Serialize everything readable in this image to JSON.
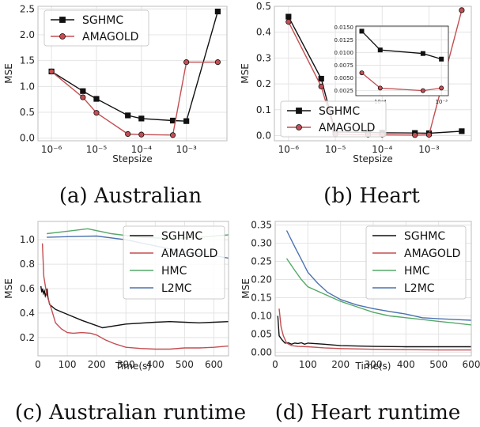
{
  "figure": {
    "captions": [
      "(a) Australian",
      "(b) Heart",
      "(c) Australian runtime",
      "(d) Heart runtime"
    ]
  },
  "chart_data": [
    {
      "type": "line",
      "panel": "a",
      "xlabel": "Stepsize",
      "ylabel": "MSE",
      "xscale": "log",
      "xlim": [
        5e-07,
        0.008
      ],
      "ylim": [
        -0.05,
        2.55
      ],
      "xticks": [
        1e-06,
        1e-05,
        0.0001,
        0.001
      ],
      "xticklabels": [
        "10⁻⁶",
        "10⁻⁵",
        "10⁻⁴",
        "10⁻³"
      ],
      "yticks": [
        0.0,
        0.5,
        1.0,
        1.5,
        2.0,
        2.5
      ],
      "yticklabels": [
        "0.0",
        "0.5",
        "1.0",
        "1.5",
        "2.0",
        "2.5"
      ],
      "grid": true,
      "legend": "top-left",
      "series": [
        {
          "name": "SGHMC",
          "color": "#111111",
          "marker": "square",
          "x": [
            1e-06,
            5e-06,
            1e-05,
            5e-05,
            0.0001,
            0.0005,
            0.001,
            0.005
          ],
          "y": [
            1.29,
            0.91,
            0.76,
            0.44,
            0.38,
            0.34,
            0.33,
            2.45
          ]
        },
        {
          "name": "AMAGOLD",
          "color": "#c44e52",
          "marker": "circle",
          "x": [
            1e-06,
            5e-06,
            1e-05,
            5e-05,
            0.0001,
            0.0005,
            0.001,
            0.005
          ],
          "y": [
            1.29,
            0.79,
            0.49,
            0.08,
            0.07,
            0.06,
            1.47,
            1.47
          ]
        }
      ]
    },
    {
      "type": "line",
      "panel": "b",
      "xlabel": "Stepsize",
      "ylabel": "MSE",
      "xscale": "log",
      "xlim": [
        5e-07,
        0.008
      ],
      "ylim": [
        -0.02,
        0.5
      ],
      "xticks": [
        1e-06,
        1e-05,
        0.0001,
        0.001
      ],
      "xticklabels": [
        "10⁻⁶",
        "10⁻⁵",
        "10⁻⁴",
        "10⁻³"
      ],
      "yticks": [
        0.0,
        0.1,
        0.2,
        0.3,
        0.4,
        0.5
      ],
      "yticklabels": [
        "0.0",
        "0.1",
        "0.2",
        "0.3",
        "0.4",
        "0.5"
      ],
      "grid": true,
      "legend": "bottom-left",
      "series": [
        {
          "name": "SGHMC",
          "color": "#111111",
          "marker": "square",
          "x": [
            1e-06,
            5e-06,
            1e-05,
            5e-05,
            0.0001,
            0.0005,
            0.001,
            0.005
          ],
          "y": [
            0.46,
            0.22,
            0.014,
            0.012,
            0.011,
            0.01,
            0.009,
            0.017
          ]
        },
        {
          "name": "AMAGOLD",
          "color": "#c44e52",
          "marker": "circle",
          "x": [
            1e-06,
            5e-06,
            1e-05,
            5e-05,
            0.0001,
            0.0005,
            0.001,
            0.005
          ],
          "y": [
            0.44,
            0.19,
            0.006,
            0.003,
            0.003,
            0.002,
            0.003,
            0.485
          ]
        }
      ],
      "inset": {
        "xscale": "log",
        "xlim": [
          4e-05,
          0.0013
        ],
        "ylim": [
          0.0015,
          0.0152
        ],
        "xticks": [
          0.0001,
          0.001
        ],
        "xticklabels": [
          "10⁻⁴",
          "10⁻³"
        ],
        "yticks": [
          0.0025,
          0.005,
          0.0075,
          0.01,
          0.0125,
          0.015
        ],
        "yticklabels": [
          "0.0025",
          "0.0050",
          "0.0075",
          "0.0100",
          "0.0125",
          "0.0150"
        ],
        "series": [
          {
            "name": "SGHMC",
            "color": "#111111",
            "marker": "square",
            "x": [
              5e-05,
              0.0001,
              0.0005,
              0.001
            ],
            "y": [
              0.0142,
              0.0105,
              0.0098,
              0.0087
            ]
          },
          {
            "name": "AMAGOLD",
            "color": "#c44e52",
            "marker": "circle",
            "x": [
              5e-05,
              0.0001,
              0.0005,
              0.001
            ],
            "y": [
              0.006,
              0.003,
              0.0025,
              0.003
            ]
          }
        ]
      }
    },
    {
      "type": "line",
      "panel": "c",
      "xlabel": "Time(s)",
      "ylabel": "MSE",
      "xlim": [
        0,
        650
      ],
      "ylim": [
        0.05,
        1.15
      ],
      "xticks": [
        0,
        100,
        200,
        300,
        400,
        500,
        600
      ],
      "xticklabels": [
        "0",
        "100",
        "200",
        "300",
        "400",
        "500",
        "600"
      ],
      "yticks": [
        0.2,
        0.4,
        0.6,
        0.8,
        1.0
      ],
      "yticklabels": [
        "0.2",
        "0.4",
        "0.6",
        "0.8",
        "1.0"
      ],
      "grid": true,
      "legend": "top-right",
      "series": [
        {
          "name": "SGHMC",
          "color": "#111111",
          "x": [
            10,
            13,
            16,
            19,
            22,
            25,
            28,
            31,
            34,
            40,
            60,
            100,
            150,
            220,
            300,
            400,
            450,
            500,
            550,
            600,
            650
          ],
          "y": [
            0.62,
            0.57,
            0.6,
            0.56,
            0.58,
            0.54,
            0.56,
            0.6,
            0.53,
            0.47,
            0.43,
            0.39,
            0.34,
            0.28,
            0.31,
            0.325,
            0.33,
            0.325,
            0.32,
            0.325,
            0.33
          ]
        },
        {
          "name": "AMAGOLD",
          "color": "#c44e52",
          "x": [
            15,
            20,
            30,
            45,
            60,
            80,
            100,
            120,
            150,
            180,
            200,
            230,
            260,
            300,
            350,
            400,
            450,
            500,
            550,
            600,
            650
          ],
          "y": [
            0.97,
            0.7,
            0.55,
            0.44,
            0.32,
            0.27,
            0.24,
            0.235,
            0.24,
            0.235,
            0.22,
            0.18,
            0.15,
            0.12,
            0.11,
            0.105,
            0.105,
            0.115,
            0.115,
            0.12,
            0.13
          ]
        },
        {
          "name": "HMC",
          "color": "#55a868",
          "x": [
            30,
            100,
            170,
            250,
            350,
            450,
            550,
            650
          ],
          "y": [
            1.05,
            1.07,
            1.09,
            1.05,
            1.02,
            1.01,
            1.02,
            1.04
          ]
        },
        {
          "name": "L2MC",
          "color": "#4c72b0",
          "x": [
            30,
            100,
            200,
            300,
            400,
            500,
            600,
            650
          ],
          "y": [
            1.02,
            1.025,
            1.03,
            1.0,
            0.95,
            0.9,
            0.87,
            0.85
          ]
        }
      ]
    },
    {
      "type": "line",
      "panel": "d",
      "xlabel": "Time(s)",
      "ylabel": "MSE",
      "xlim": [
        0,
        600
      ],
      "ylim": [
        -0.01,
        0.36
      ],
      "xticks": [
        0,
        100,
        200,
        300,
        400,
        500,
        600
      ],
      "xticklabels": [
        "0",
        "100",
        "200",
        "300",
        "400",
        "500",
        "600"
      ],
      "yticks": [
        0.0,
        0.05,
        0.1,
        0.15,
        0.2,
        0.25,
        0.3,
        0.35
      ],
      "yticklabels": [
        "0.00",
        "0.05",
        "0.10",
        "0.15",
        "0.20",
        "0.25",
        "0.30",
        "0.35"
      ],
      "grid": true,
      "legend": "top-right",
      "series": [
        {
          "name": "SGHMC",
          "color": "#111111",
          "x": [
            8,
            12,
            20,
            30,
            40,
            50,
            60,
            70,
            80,
            90,
            100,
            150,
            200,
            300,
            400,
            500,
            600
          ],
          "y": [
            0.1,
            0.045,
            0.035,
            0.025,
            0.026,
            0.022,
            0.025,
            0.024,
            0.026,
            0.022,
            0.025,
            0.022,
            0.018,
            0.016,
            0.015,
            0.015,
            0.015
          ]
        },
        {
          "name": "AMAGOLD",
          "color": "#c44e52",
          "x": [
            12,
            18,
            25,
            35,
            50,
            70,
            100,
            150,
            200,
            300,
            400,
            500,
            600
          ],
          "y": [
            0.12,
            0.07,
            0.045,
            0.025,
            0.018,
            0.016,
            0.015,
            0.012,
            0.01,
            0.008,
            0.007,
            0.006,
            0.006
          ]
        },
        {
          "name": "HMC",
          "color": "#55a868",
          "x": [
            35,
            60,
            80,
            100,
            150,
            200,
            250,
            300,
            350,
            400,
            450,
            500,
            550,
            600
          ],
          "y": [
            0.258,
            0.225,
            0.2,
            0.18,
            0.16,
            0.14,
            0.125,
            0.11,
            0.1,
            0.095,
            0.09,
            0.085,
            0.08,
            0.075
          ]
        },
        {
          "name": "L2MC",
          "color": "#4c72b0",
          "x": [
            35,
            60,
            80,
            100,
            130,
            160,
            200,
            250,
            300,
            350,
            400,
            450,
            500,
            550,
            600
          ],
          "y": [
            0.335,
            0.29,
            0.255,
            0.22,
            0.19,
            0.165,
            0.145,
            0.13,
            0.12,
            0.112,
            0.105,
            0.095,
            0.092,
            0.09,
            0.088
          ]
        }
      ]
    }
  ]
}
